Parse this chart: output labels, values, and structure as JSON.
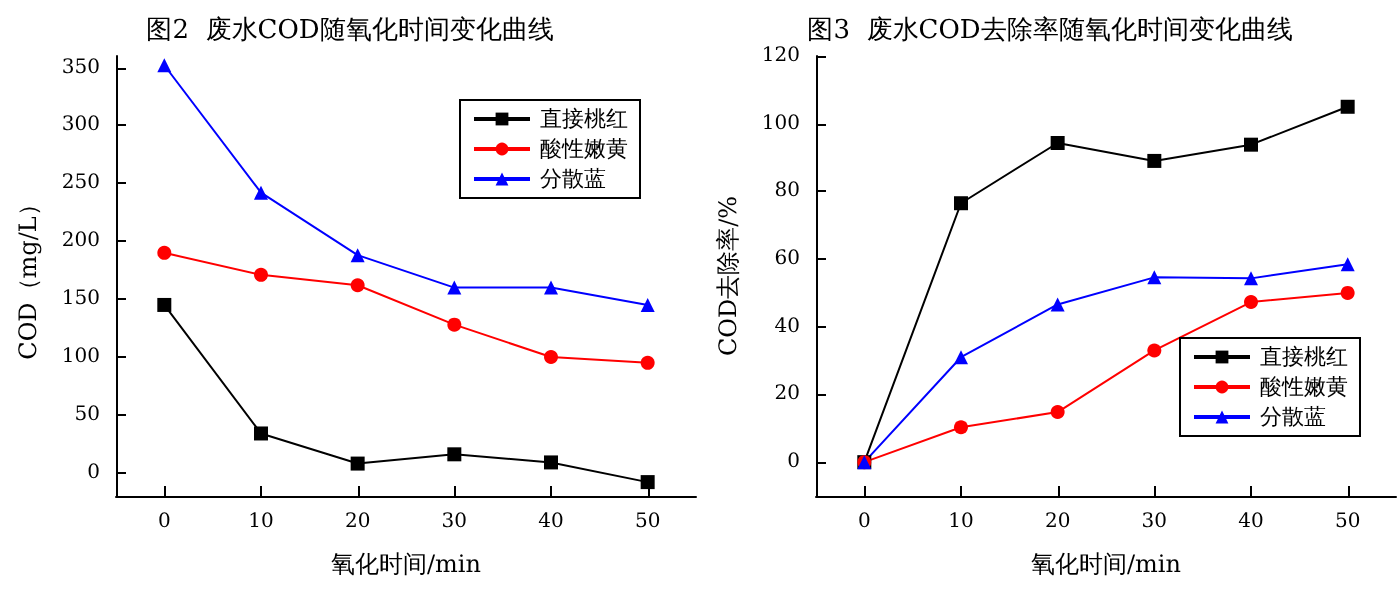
{
  "chart_data": [
    {
      "type": "line",
      "title": "图2  废水COD随氧化时间变化曲线",
      "xlabel": "氧化时间/min",
      "ylabel": "COD（mg/L）",
      "x": [
        0,
        10,
        20,
        30,
        40,
        50
      ],
      "xlim": [
        -5,
        55
      ],
      "xticks": [
        0,
        10,
        20,
        30,
        40,
        50
      ],
      "ylim": [
        -20,
        360
      ],
      "yticks": [
        0,
        50,
        100,
        150,
        200,
        250,
        300,
        350
      ],
      "grid": false,
      "legend": "top right",
      "series": [
        {
          "name": "直接桃红",
          "color": "#000000",
          "marker": "square",
          "values": [
            145,
            34,
            8,
            16,
            9,
            -8
          ]
        },
        {
          "name": "酸性嫩黄",
          "color": "#ff0000",
          "marker": "circle",
          "values": [
            190,
            171,
            162,
            128,
            100,
            95
          ]
        },
        {
          "name": "分散蓝",
          "color": "#0000ff",
          "marker": "triangle",
          "values": [
            352,
            242,
            188,
            160,
            160,
            145
          ]
        }
      ]
    },
    {
      "type": "line",
      "title": "图3  废水COD去除率随氧化时间变化曲线",
      "xlabel": "氧化时间/min",
      "ylabel": "COD去除率/%",
      "x": [
        0,
        10,
        20,
        30,
        40,
        50
      ],
      "xlim": [
        -5,
        55
      ],
      "xticks": [
        0,
        10,
        20,
        30,
        40,
        50
      ],
      "ylim": [
        -10,
        120
      ],
      "yticks": [
        0,
        20,
        40,
        60,
        80,
        100,
        120
      ],
      "grid": false,
      "legend": "bottom right",
      "series": [
        {
          "name": "直接桃红",
          "color": "#000000",
          "marker": "square",
          "values": [
            0,
            76.5,
            94.3,
            89,
            93.8,
            105
          ]
        },
        {
          "name": "酸性嫩黄",
          "color": "#ff0000",
          "marker": "circle",
          "values": [
            0,
            10.3,
            14.8,
            33,
            47.3,
            50
          ]
        },
        {
          "name": "分散蓝",
          "color": "#0000ff",
          "marker": "triangle",
          "values": [
            0,
            31,
            46.6,
            54.6,
            54.3,
            58.5
          ]
        }
      ]
    }
  ]
}
